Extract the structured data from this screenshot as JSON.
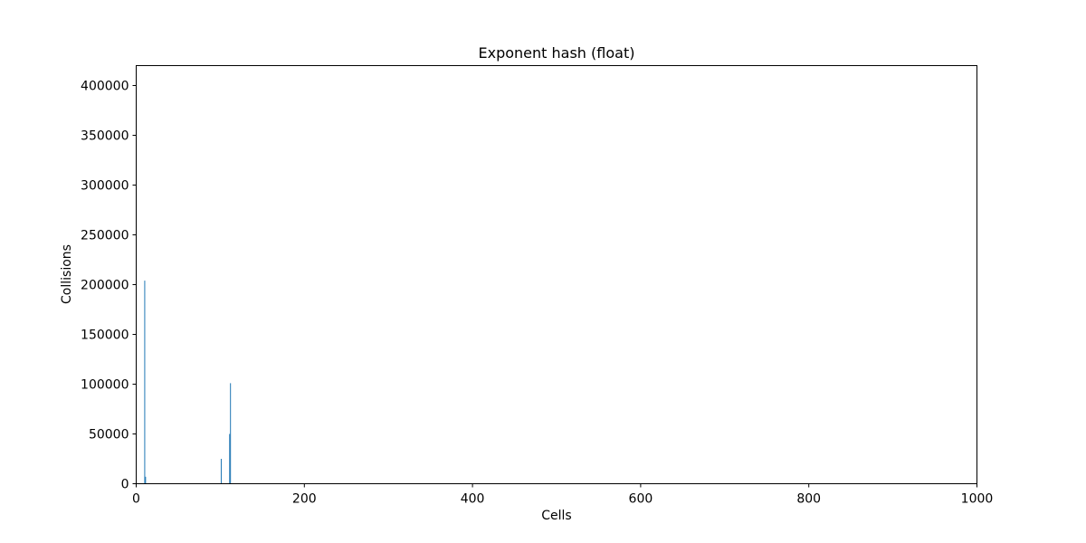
{
  "chart_data": {
    "type": "bar",
    "title": "Exponent hash (float)",
    "xlabel": "Cells",
    "ylabel": "Collisions",
    "xlim": [
      0,
      1000
    ],
    "ylim": [
      0,
      420000
    ],
    "xticks": [
      0,
      200,
      400,
      600,
      800,
      1000
    ],
    "yticks": [
      0,
      50000,
      100000,
      150000,
      200000,
      250000,
      300000,
      350000,
      400000
    ],
    "grid": false,
    "bar_color": "#1f77b4",
    "x": [
      10,
      11,
      101,
      111,
      112
    ],
    "values": [
      204000,
      7000,
      25000,
      50000,
      101000
    ]
  }
}
